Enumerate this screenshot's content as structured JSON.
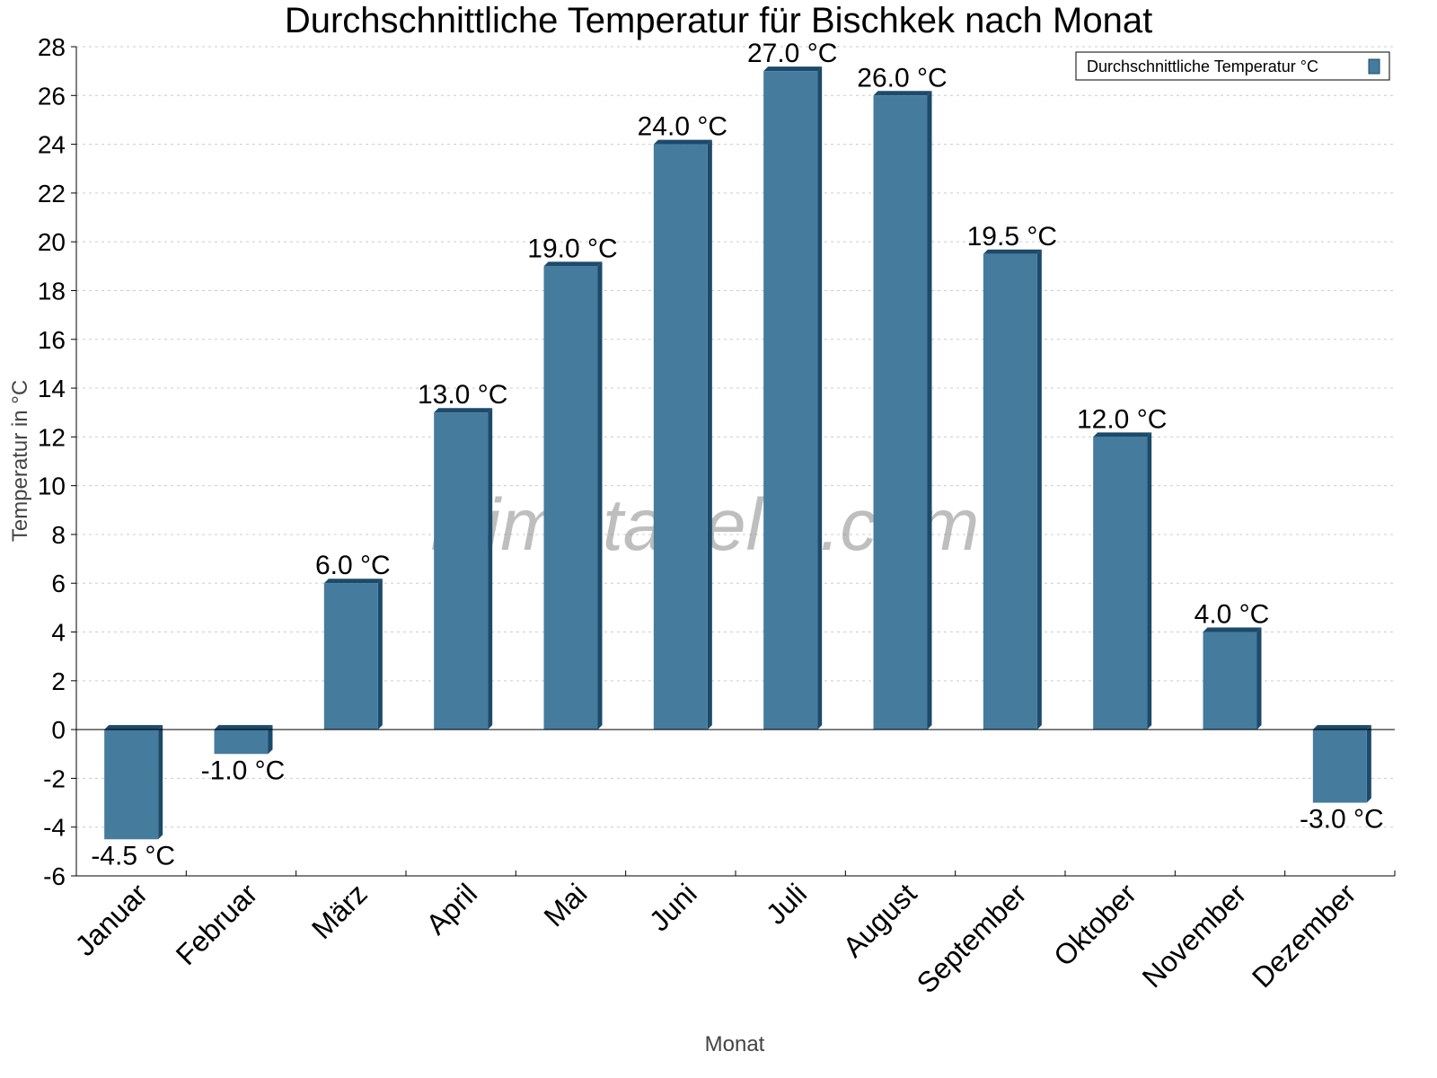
{
  "chart_data": {
    "type": "bar",
    "title": "Durchschnittliche Temperatur für Bischkek nach Monat",
    "xlabel": "Monat",
    "ylabel": "Temperatur in °C",
    "categories": [
      "Januar",
      "Februar",
      "März",
      "April",
      "Mai",
      "Juni",
      "Juli",
      "August",
      "September",
      "Oktober",
      "November",
      "Dezember"
    ],
    "series": [
      {
        "name": "Durchschnittliche Temperatur °C",
        "values": [
          -4.5,
          -1.0,
          6.0,
          13.0,
          19.0,
          24.0,
          27.0,
          26.0,
          19.5,
          12.0,
          4.0,
          -3.0
        ],
        "labels": [
          "-4.5 °C",
          "-1.0 °C",
          "6.0 °C",
          "13.0 °C",
          "19.0 °C",
          "24.0 °C",
          "27.0 °C",
          "26.0 °C",
          "19.5 °C",
          "12.0 °C",
          "4.0 °C",
          "-3.0 °C"
        ]
      }
    ],
    "ylim": [
      -6,
      28
    ],
    "yticks": [
      -6,
      -4,
      -2,
      0,
      2,
      4,
      6,
      8,
      10,
      12,
      14,
      16,
      18,
      20,
      22,
      24,
      26,
      28
    ],
    "grid": true,
    "legend": "top-right",
    "colors": {
      "bar": "#457b9d",
      "bar_side": "#1b4a6b"
    },
    "watermark": "klimatabelle.com"
  }
}
